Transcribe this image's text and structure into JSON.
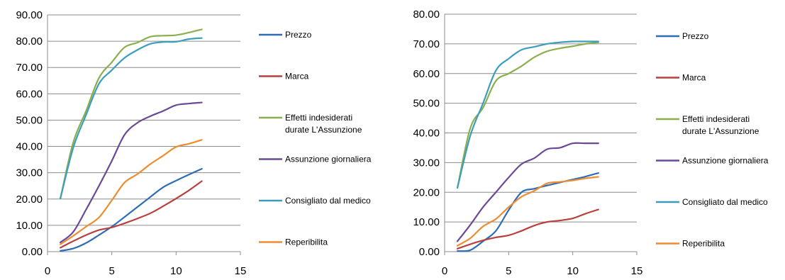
{
  "chart_data": [
    {
      "type": "line",
      "title": "",
      "xlabel": "",
      "ylabel": "",
      "xlim": [
        0,
        15
      ],
      "ylim": [
        0,
        90
      ],
      "x_ticks": [
        0,
        5,
        10,
        15
      ],
      "y_ticks": [
        "0.00",
        "10.00",
        "20.00",
        "30.00",
        "40.00",
        "50.00",
        "60.00",
        "70.00",
        "80.00",
        "90.00"
      ],
      "grid": "horizontal",
      "legend_position": "right",
      "series": [
        {
          "name": "Prezzo",
          "color": "#2E6DB4",
          "x": [
            1,
            2,
            3,
            4,
            5,
            6,
            7,
            8,
            9,
            10,
            11,
            12
          ],
          "y": [
            0.3,
            1.2,
            3.3,
            6.3,
            9.5,
            13.2,
            17.0,
            20.8,
            24.5,
            27.0,
            29.3,
            31.5
          ]
        },
        {
          "name": "Marca",
          "color": "#B8413D",
          "x": [
            1,
            2,
            3,
            4,
            5,
            6,
            7,
            8,
            9,
            10,
            11,
            12
          ],
          "y": [
            1.5,
            4.0,
            6.3,
            8.2,
            9.2,
            10.8,
            12.6,
            14.6,
            17.3,
            20.2,
            23.3,
            26.8
          ]
        },
        {
          "name": "Effetti indesiderati durate L'Assunzione",
          "color": "#8CAF4E",
          "x": [
            1,
            2,
            3,
            4,
            5,
            6,
            7,
            8,
            9,
            10,
            11,
            12
          ],
          "y": [
            20.2,
            41.5,
            53.5,
            66.0,
            72.0,
            77.7,
            79.5,
            81.7,
            82.1,
            82.3,
            83.3,
            84.5
          ]
        },
        {
          "name": "Assunzione giornaliera",
          "color": "#6A4A97",
          "x": [
            1,
            2,
            3,
            4,
            5,
            6,
            7,
            8,
            9,
            10,
            11,
            12
          ],
          "y": [
            3.5,
            7.5,
            16.0,
            25.0,
            34.5,
            44.5,
            49.0,
            51.5,
            53.5,
            55.7,
            56.3,
            56.7
          ]
        },
        {
          "name": "Consigliato dal medico",
          "color": "#3C9EBB",
          "x": [
            1,
            2,
            3,
            4,
            5,
            6,
            7,
            8,
            9,
            10,
            11,
            12
          ],
          "y": [
            20.2,
            39.5,
            52.0,
            63.8,
            69.0,
            73.7,
            76.7,
            79.0,
            79.7,
            79.8,
            80.8,
            81.2
          ]
        },
        {
          "name": "Reperibilita",
          "color": "#EF8C2F",
          "x": [
            1,
            2,
            3,
            4,
            5,
            6,
            7,
            8,
            9,
            10,
            11,
            12
          ],
          "y": [
            2.8,
            6.0,
            9.5,
            13.0,
            19.5,
            26.3,
            29.5,
            33.3,
            36.5,
            39.8,
            41.0,
            42.5
          ]
        }
      ]
    },
    {
      "type": "line",
      "title": "",
      "xlabel": "",
      "ylabel": "",
      "xlim": [
        0,
        15
      ],
      "ylim": [
        0,
        80
      ],
      "x_ticks": [
        0,
        5,
        10,
        15
      ],
      "y_ticks": [
        "0.00",
        "10.00",
        "20.00",
        "30.00",
        "40.00",
        "50.00",
        "60.00",
        "70.00",
        "80.00"
      ],
      "grid": "horizontal",
      "legend_position": "right",
      "series": [
        {
          "name": "Prezzo",
          "color": "#2E6DB4",
          "x": [
            1,
            2,
            3,
            4,
            5,
            6,
            7,
            8,
            9,
            10,
            11,
            12
          ],
          "y": [
            0.2,
            0.5,
            3.5,
            7.0,
            14.0,
            20.0,
            21.2,
            22.3,
            23.3,
            24.3,
            25.3,
            26.5
          ]
        },
        {
          "name": "Marca",
          "color": "#B8413D",
          "x": [
            1,
            2,
            3,
            4,
            5,
            6,
            7,
            8,
            9,
            10,
            11,
            12
          ],
          "y": [
            1.0,
            2.5,
            3.8,
            4.8,
            5.5,
            7.0,
            8.8,
            10.0,
            10.5,
            11.2,
            12.8,
            14.2
          ]
        },
        {
          "name": "Effetti indesiderati durate L'Assunzione",
          "color": "#8CAF4E",
          "x": [
            1,
            2,
            3,
            4,
            5,
            6,
            7,
            8,
            9,
            10,
            11,
            12
          ],
          "y": [
            21.5,
            41.5,
            48.5,
            57.5,
            60.0,
            62.5,
            65.5,
            67.5,
            68.5,
            69.2,
            70.0,
            70.5
          ]
        },
        {
          "name": "Assunzione giornaliera",
          "color": "#6A4A97",
          "x": [
            1,
            2,
            3,
            4,
            5,
            6,
            7,
            8,
            9,
            10,
            11,
            12
          ],
          "y": [
            3.5,
            9.0,
            15.0,
            20.0,
            25.0,
            29.5,
            31.5,
            34.5,
            35.0,
            36.5,
            36.5,
            36.5
          ]
        },
        {
          "name": "Consigliato dal medico",
          "color": "#3C9EBB",
          "x": [
            1,
            2,
            3,
            4,
            5,
            6,
            7,
            8,
            9,
            10,
            11,
            12
          ],
          "y": [
            21.5,
            39.0,
            50.0,
            61.0,
            65.0,
            68.0,
            69.0,
            70.0,
            70.5,
            70.8,
            70.8,
            70.8
          ]
        },
        {
          "name": "Reperibilita",
          "color": "#EF8C2F",
          "x": [
            1,
            2,
            3,
            4,
            5,
            6,
            7,
            8,
            9,
            10,
            11,
            12
          ],
          "y": [
            2.0,
            4.5,
            8.5,
            11.0,
            15.0,
            18.5,
            20.5,
            23.0,
            23.5,
            24.0,
            24.7,
            25.2
          ]
        }
      ]
    }
  ]
}
